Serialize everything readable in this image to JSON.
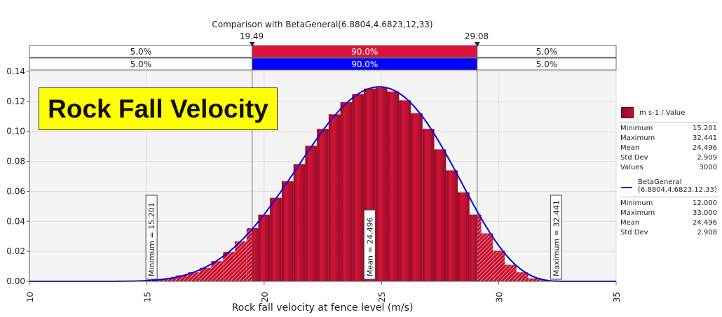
{
  "chart_data": {
    "type": "bar",
    "title": "Comparison with BetaGeneral(6.8804,4.6823,12,33)",
    "overlay_title": "Rock Fall Velocity",
    "xlabel": "Rock fall velocity at fence level (m/s)",
    "ylabel": "",
    "xlim": [
      10,
      35
    ],
    "ylim": [
      0,
      0.14
    ],
    "x_ticks": [
      "10",
      "15",
      "20",
      "25",
      "30",
      "35"
    ],
    "y_ticks": [
      "0.00",
      "0.02",
      "0.04",
      "0.06",
      "0.08",
      "0.10",
      "0.12",
      "0.14"
    ],
    "grid": true,
    "bin_width": 0.5,
    "bin_starts": [
      15.25,
      15.75,
      16.25,
      16.75,
      17.25,
      17.75,
      18.25,
      18.75,
      19.25,
      19.75,
      20.25,
      20.75,
      21.25,
      21.75,
      22.25,
      22.75,
      23.25,
      23.75,
      24.25,
      24.75,
      25.25,
      25.75,
      26.25,
      26.75,
      27.25,
      27.75,
      28.25,
      28.75,
      29.25,
      29.75,
      30.25,
      30.75,
      31.25,
      31.75
    ],
    "density": [
      0.0015,
      0.002,
      0.004,
      0.006,
      0.009,
      0.0135,
      0.0196,
      0.0266,
      0.0355,
      0.0445,
      0.0557,
      0.0667,
      0.0782,
      0.0904,
      0.1017,
      0.1114,
      0.1195,
      0.1249,
      0.1285,
      0.129,
      0.1266,
      0.1207,
      0.1121,
      0.1017,
      0.088,
      0.074,
      0.0593,
      0.0445,
      0.032,
      0.0204,
      0.011,
      0.006,
      0.002,
      0.0007
    ],
    "fit": {
      "name": "BetaGeneral",
      "alpha1": 6.8804,
      "alpha2": 4.6823,
      "min": 12,
      "max": 33
    },
    "delimiters": {
      "left": 19.49,
      "right": 29.08,
      "left_label": "19.49",
      "right_label": "29.08"
    },
    "bands": {
      "input": [
        "5.0%",
        "90.0%",
        "5.0%"
      ],
      "fit": [
        "5.0%",
        "90.0%",
        "5.0%"
      ]
    },
    "markers": [
      {
        "value": 15.201,
        "label": "Minimum = 15.201"
      },
      {
        "value": 24.496,
        "label": "Mean = 24.496"
      },
      {
        "value": 32.441,
        "label": "Maximum = 32.441"
      }
    ],
    "colors": {
      "bars": "#c8102e",
      "fit": "#0000e0",
      "band_input": "#dc143c",
      "band_fit": "#0000ff",
      "yellow": "#ffff00"
    }
  },
  "legend": {
    "input": {
      "label": "m s-1 / Value",
      "stats": [
        [
          "Minimum",
          "15.201"
        ],
        [
          "Maximum",
          "32.441"
        ],
        [
          "Mean",
          "24.496"
        ],
        [
          "Std Dev",
          "2.909"
        ],
        [
          "Values",
          "3000"
        ]
      ]
    },
    "fit": {
      "label1": "BetaGeneral",
      "label2": "(6.8804,4.6823,12,33)",
      "stats": [
        [
          "Minimum",
          "12.000"
        ],
        [
          "Maximum",
          "33.000"
        ],
        [
          "Mean",
          "24.496"
        ],
        [
          "Std Dev",
          "2.908"
        ]
      ]
    }
  }
}
